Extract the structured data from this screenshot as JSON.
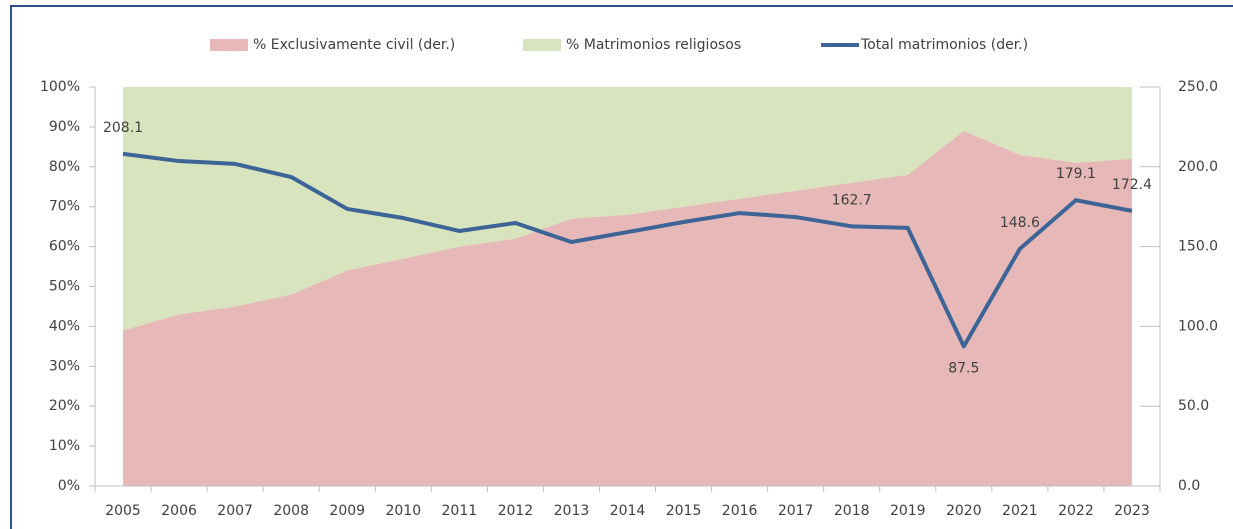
{
  "chart_data": {
    "type": "area_line",
    "categories": [
      "2005",
      "2006",
      "2007",
      "2008",
      "2009",
      "2010",
      "2011",
      "2012",
      "2013",
      "2014",
      "2015",
      "2016",
      "2017",
      "2018",
      "2019",
      "2020",
      "2021",
      "2022",
      "2023"
    ],
    "series": [
      {
        "name": "% Exclusivamente civil (der.)",
        "color": "#e6b8b7",
        "type": "area",
        "values": [
          39,
          43,
          45,
          48,
          54,
          57,
          60,
          62,
          67,
          68,
          70,
          72,
          74,
          76,
          78,
          89,
          83,
          81,
          82
        ]
      },
      {
        "name": "% Matrimonios religiosos",
        "color": "#d7e4bd",
        "type": "area",
        "values": [
          61,
          57,
          55,
          52,
          46,
          43,
          40,
          38,
          33,
          32,
          30,
          28,
          26,
          24,
          22,
          11,
          17,
          19,
          18
        ]
      },
      {
        "name": "Total matrimonios (der.)",
        "color": "#3c6496",
        "type": "line",
        "axis": "y2",
        "values": [
          208.1,
          203.6,
          201.8,
          193.6,
          173.6,
          167.9,
          159.8,
          164.8,
          152.9,
          159.1,
          165.4,
          171,
          168.5,
          162.7,
          161.7,
          87.5,
          148.6,
          179.1,
          172.4
        ],
        "value_labels": [
          "208.1",
          null,
          null,
          null,
          null,
          null,
          null,
          null,
          null,
          null,
          null,
          null,
          null,
          "162.7",
          null,
          "87.5",
          "148.6",
          "179.1",
          "172.4"
        ]
      }
    ],
    "ylim": [
      0,
      100
    ],
    "yticks": [
      {
        "value": 0,
        "label": "0%"
      },
      {
        "value": 10,
        "label": "10%"
      },
      {
        "value": 20,
        "label": "20%"
      },
      {
        "value": 30,
        "label": "30%"
      },
      {
        "value": 40,
        "label": "40%"
      },
      {
        "value": 50,
        "label": "50%"
      },
      {
        "value": 60,
        "label": "60%"
      },
      {
        "value": 70,
        "label": "70%"
      },
      {
        "value": 80,
        "label": "80%"
      },
      {
        "value": 90,
        "label": "90%"
      },
      {
        "value": 100,
        "label": "100%"
      }
    ],
    "y2lim": [
      0,
      250
    ],
    "y2ticks": [
      {
        "value": 0,
        "label": "0.0"
      },
      {
        "value": 50,
        "label": "50.0"
      },
      {
        "value": 100,
        "label": "100.0"
      },
      {
        "value": 150,
        "label": "150.0"
      },
      {
        "value": 200,
        "label": "200.0"
      },
      {
        "value": 250,
        "label": "250.0"
      }
    ],
    "legend": "top"
  }
}
